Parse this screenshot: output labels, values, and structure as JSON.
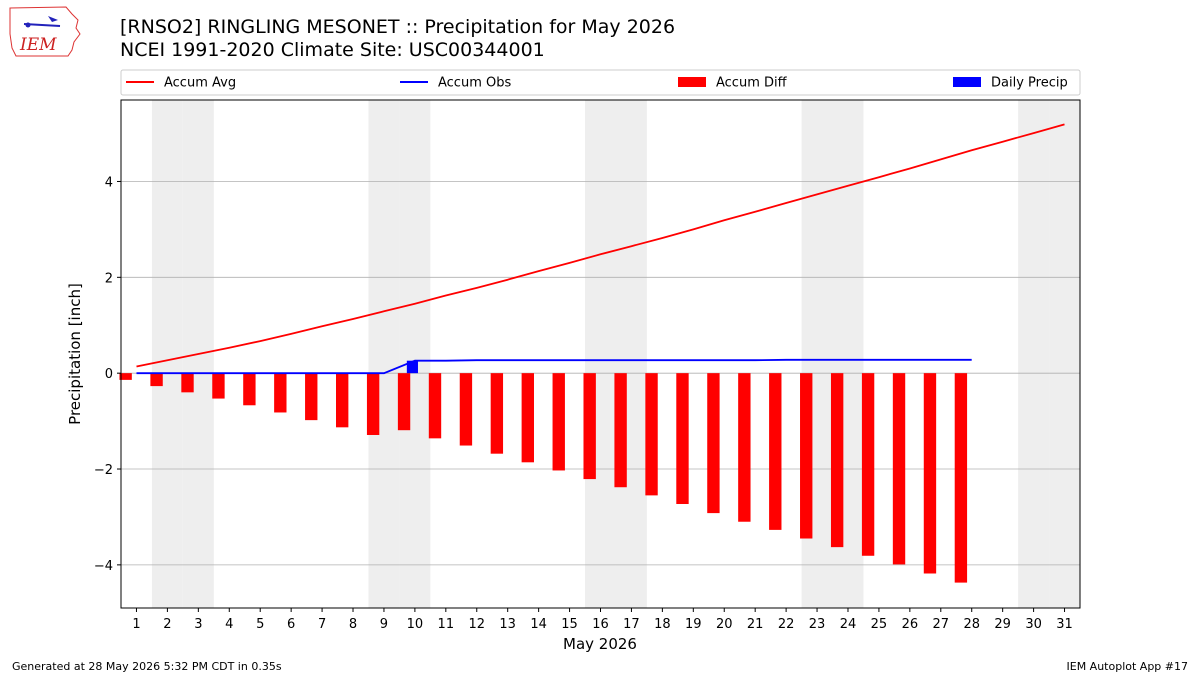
{
  "header": {
    "title_line1": "[RNSO2] RINGLING MESONET :: Precipitation for May 2026",
    "title_line2": "NCEI 1991-2020 Climate Site: USC00344001",
    "logo_text": "IEM"
  },
  "footer": {
    "left": "Generated at 28 May 2026 5:32 PM CDT in 0.35s",
    "right": "IEM Autoplot App #17"
  },
  "colors": {
    "accum_avg": "#ff0000",
    "accum_obs": "#0000ff",
    "accum_diff": "#ff0000",
    "daily_precip": "#0000ff",
    "weekend_band": "#eeeeee",
    "grid": "#b0b0b0"
  },
  "chart_data": {
    "type": "bar",
    "xlabel": "May 2026",
    "ylabel": "Precipitation [inch]",
    "xlim": [
      0.5,
      31.5
    ],
    "ylim": [
      -4.9,
      5.7
    ],
    "yticks": [
      -4,
      -2,
      0,
      2,
      4
    ],
    "ytick_labels": [
      "−4",
      "−2",
      "0",
      "2",
      "4"
    ],
    "days": [
      1,
      2,
      3,
      4,
      5,
      6,
      7,
      8,
      9,
      10,
      11,
      12,
      13,
      14,
      15,
      16,
      17,
      18,
      19,
      20,
      21,
      22,
      23,
      24,
      25,
      26,
      27,
      28,
      29,
      30,
      31
    ],
    "weekend_days": [
      2,
      3,
      9,
      10,
      16,
      17,
      23,
      24,
      30,
      31
    ],
    "grid": "horizontal",
    "legend_position": "top",
    "legend": [
      "Accum Avg",
      "Accum Obs",
      "Accum Diff",
      "Daily Precip"
    ],
    "series": [
      {
        "name": "Accum Avg",
        "kind": "line",
        "x": [
          1,
          2,
          3,
          4,
          5,
          6,
          7,
          8,
          9,
          10,
          11,
          12,
          13,
          14,
          15,
          16,
          17,
          18,
          19,
          20,
          21,
          22,
          23,
          24,
          25,
          26,
          27,
          28,
          29,
          30,
          31
        ],
        "values": [
          0.14,
          0.27,
          0.4,
          0.53,
          0.67,
          0.82,
          0.98,
          1.13,
          1.29,
          1.45,
          1.62,
          1.78,
          1.95,
          2.13,
          2.3,
          2.48,
          2.65,
          2.82,
          3.0,
          3.19,
          3.37,
          3.55,
          3.73,
          3.91,
          4.09,
          4.27,
          4.46,
          4.65,
          4.83,
          5.01,
          5.19
        ]
      },
      {
        "name": "Accum Obs",
        "kind": "line",
        "x": [
          1,
          2,
          3,
          4,
          5,
          6,
          7,
          8,
          9,
          10,
          11,
          12,
          13,
          14,
          15,
          16,
          17,
          18,
          19,
          20,
          21,
          22,
          23,
          24,
          25,
          26,
          27,
          28
        ],
        "values": [
          0,
          0,
          0,
          0,
          0,
          0,
          0,
          0,
          0,
          0.26,
          0.26,
          0.27,
          0.27,
          0.27,
          0.27,
          0.27,
          0.27,
          0.27,
          0.27,
          0.27,
          0.27,
          0.28,
          0.28,
          0.28,
          0.28,
          0.28,
          0.28,
          0.28
        ]
      },
      {
        "name": "Accum Diff",
        "kind": "bar",
        "x": [
          1,
          2,
          3,
          4,
          5,
          6,
          7,
          8,
          9,
          10,
          11,
          12,
          13,
          14,
          15,
          16,
          17,
          18,
          19,
          20,
          21,
          22,
          23,
          24,
          25,
          26,
          27,
          28
        ],
        "values": [
          -0.14,
          -0.27,
          -0.4,
          -0.53,
          -0.67,
          -0.82,
          -0.98,
          -1.13,
          -1.29,
          -1.19,
          -1.36,
          -1.51,
          -1.68,
          -1.86,
          -2.03,
          -2.21,
          -2.38,
          -2.55,
          -2.73,
          -2.92,
          -3.1,
          -3.27,
          -3.45,
          -3.63,
          -3.81,
          -3.99,
          -4.18,
          -4.37
        ]
      },
      {
        "name": "Daily Precip",
        "kind": "bar",
        "x": [
          10
        ],
        "values": [
          0.26
        ]
      }
    ]
  }
}
